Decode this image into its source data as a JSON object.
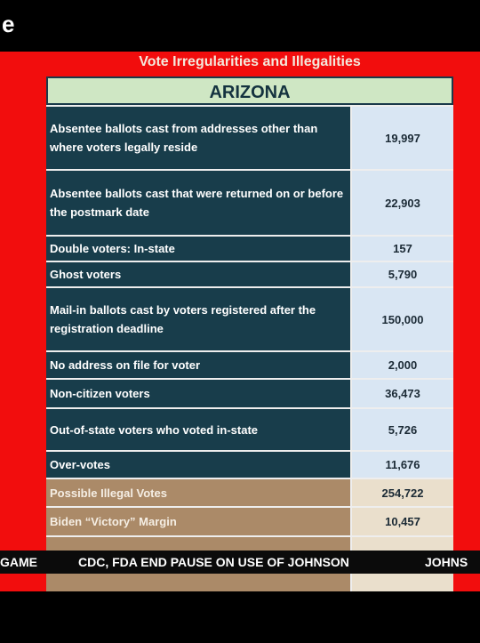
{
  "header": {
    "text": "e"
  },
  "table": {
    "title": "Vote Irregularities and Illegalities",
    "state": "ARIZONA",
    "rows": [
      [
        "Absentee ballots cast from addresses other than where voters legally reside",
        "19,997"
      ],
      [
        "Absentee ballots cast that were returned on or before the postmark date",
        "22,903"
      ],
      [
        "Double voters: In-state",
        "157"
      ],
      [
        "Ghost voters",
        "5,790"
      ],
      [
        "Mail-in ballots cast by voters registered after the registration deadline",
        "150,000"
      ],
      [
        "No address on file for voter",
        "2,000"
      ],
      [
        "Non-citizen voters",
        "36,473"
      ],
      [
        "Out-of-state voters who voted in-state",
        "5,726"
      ],
      [
        "Over-votes",
        "11,676"
      ],
      [
        "Possible Illegal Votes",
        "254,722"
      ],
      [
        "Biden “Victory” Margin",
        "10,457"
      ]
    ]
  },
  "ticker": {
    "items": [
      "GAME",
      "CDC, FDA END PAUSE ON USE OF JOHNSON",
      "JOHNS"
    ]
  }
}
